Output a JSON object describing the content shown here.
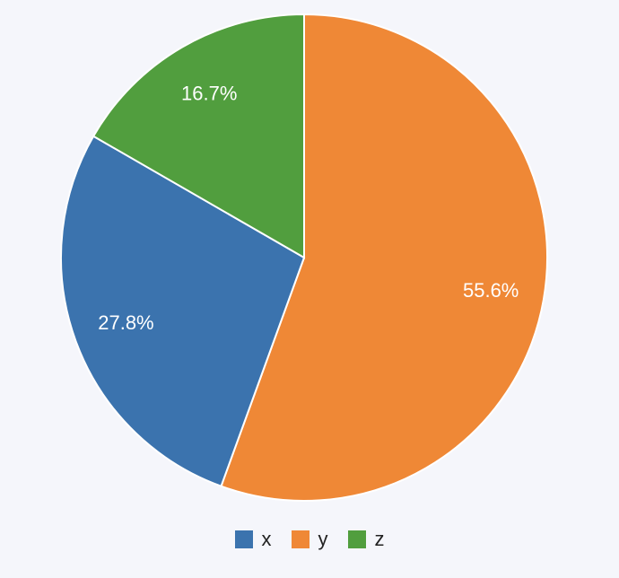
{
  "chart_data": {
    "type": "pie",
    "title": "",
    "legend_position": "bottom",
    "categories": [
      "x",
      "y",
      "z"
    ],
    "values": [
      27.8,
      55.6,
      16.7
    ],
    "labels": [
      "27.8%",
      "55.6%",
      "16.7%"
    ],
    "colors": [
      "#3b73ae",
      "#ef8836",
      "#519e3e"
    ]
  },
  "legend": {
    "items": [
      {
        "label": "x",
        "color": "#3b73ae"
      },
      {
        "label": "y",
        "color": "#ef8836"
      },
      {
        "label": "z",
        "color": "#519e3e"
      }
    ]
  }
}
